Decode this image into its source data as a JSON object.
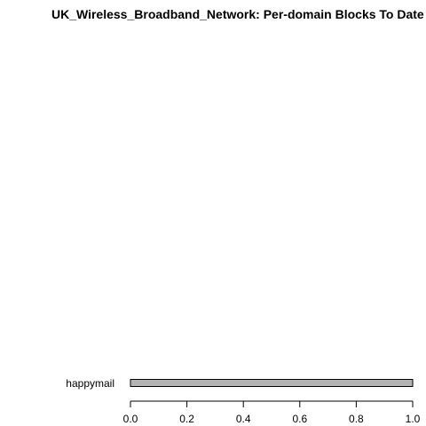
{
  "chart_data": {
    "type": "bar",
    "orientation": "horizontal",
    "title": "UK_Wireless_Broadband_Network: Per-domain Blocks To Date",
    "xlabel": "",
    "ylabel": "",
    "categories": [
      "happymail"
    ],
    "values": [
      1.0
    ],
    "xlim": [
      0,
      1
    ],
    "ticks": [
      "0.0",
      "0.2",
      "0.4",
      "0.6",
      "0.8",
      "1.0"
    ],
    "tick_values": [
      0,
      0.2,
      0.4,
      0.6,
      0.8,
      1.0
    ],
    "grid": false,
    "bar_color": "#b3b3b3",
    "bar_border_color": "#000000"
  }
}
